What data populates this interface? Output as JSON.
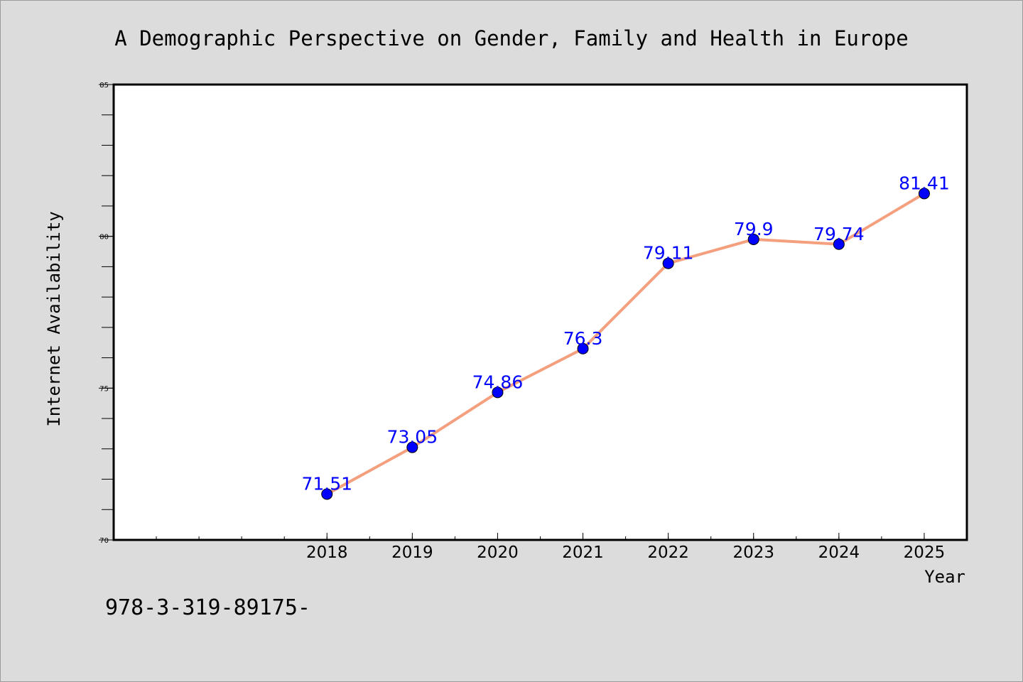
{
  "colors": {
    "background": "#dcdcdc",
    "plot_background": "#ffffff",
    "line": "#f4a07e",
    "marker": "#0000ff",
    "data_label": "#0000ff",
    "axis": "#000000"
  },
  "footer": {
    "text": "978-3-319-89175-"
  },
  "chart_data": {
    "type": "line",
    "title": "A Demographic Perspective on Gender, Family and Health in Europe",
    "xlabel": "Year",
    "ylabel": "Internet Availability",
    "categories": [
      "2018",
      "2019",
      "2020",
      "2021",
      "2022",
      "2023",
      "2024",
      "2025"
    ],
    "series": [
      {
        "values": [
          71.51,
          73.05,
          74.86,
          76.3,
          79.11,
          79.9,
          79.74,
          81.41
        ]
      }
    ],
    "data_labels": [
      "71.51",
      "73.05",
      "74.86",
      "76.3",
      "79.11",
      "79.9",
      "79.74",
      "81.41"
    ],
    "ylim": [
      70,
      85
    ],
    "yticks": [
      70,
      75,
      80,
      85
    ],
    "ytick_labels": [
      "70",
      "75",
      "80",
      "85"
    ],
    "xlim": [
      2015.5,
      2025.5
    ],
    "grid": false,
    "legend": "none",
    "marker": "circle"
  }
}
